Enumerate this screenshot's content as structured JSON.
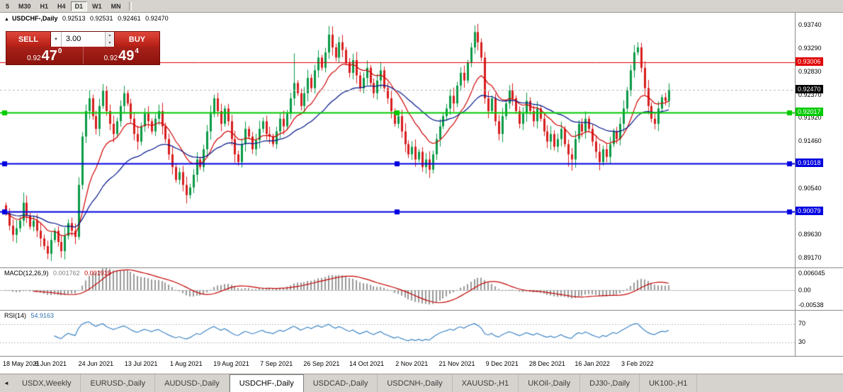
{
  "toolbar": {
    "timeframes": [
      "5",
      "M30",
      "H1",
      "H4",
      "D1",
      "W1",
      "MN"
    ],
    "active": "D1"
  },
  "chart": {
    "title": {
      "arrow_icon": "▲",
      "symbol": "USDCHF-,Daily",
      "open": "0.92513",
      "high": "0.92531",
      "low": "0.92461",
      "close": "0.92470"
    },
    "trade_panel": {
      "sell_label": "SELL",
      "buy_label": "BUY",
      "lot": "3.00",
      "lot_dropdown_icon": "▼",
      "spin_up_icon": "▲",
      "spin_down_icon": "▼",
      "bid_small": "0.92",
      "bid_big": "47",
      "bid_sup": "0",
      "ask_small": "0.92",
      "ask_big": "49",
      "ask_sup": "4"
    },
    "price_range": {
      "max": 0.9398,
      "min": 0.8898
    },
    "axis_labels": [
      "0.93740",
      "0.93290",
      "0.92830",
      "0.92370",
      "0.91920",
      "0.91460",
      "0.91010",
      "0.90540",
      "0.90070",
      "0.89630",
      "0.89170"
    ],
    "levels": [
      {
        "label": "0.93006",
        "price": 0.93006,
        "color": "#e00000",
        "width": 1,
        "handles": false
      },
      {
        "label": "0.92017",
        "price": 0.92017,
        "color": "#00ca00",
        "width": 2,
        "handles": true
      },
      {
        "label": "0.91018",
        "price": 0.91018,
        "color": "#0000e0",
        "width": 2,
        "handles": true
      },
      {
        "label": "0.90079",
        "price": 0.90079,
        "color": "#0000e0",
        "width": 2,
        "handles": true
      }
    ],
    "current_price": {
      "label": "0.92470",
      "price": 0.9247,
      "color": "#000000"
    },
    "dates": [
      "18 May 2021",
      "6 Jun 2021",
      "24 Jun 2021",
      "13 Jul 2021",
      "1 Aug 2021",
      "19 Aug 2021",
      "7 Sep 2021",
      "26 Sep 2021",
      "14 Oct 2021",
      "2 Nov 2021",
      "21 Nov 2021",
      "9 Dec 2021",
      "28 Dec 2021",
      "16 Jan 2022",
      "3 Feb 2022"
    ]
  },
  "chart_data": {
    "type": "candlestick",
    "symbol": "USDCHF-,Daily",
    "first_open": 0.902,
    "closes": [
      0.9005,
      0.898,
      0.8962,
      0.8975,
      0.899,
      0.9025,
      0.9,
      0.8978,
      0.899,
      0.897,
      0.8955,
      0.894,
      0.8925,
      0.8952,
      0.897,
      0.8948,
      0.893,
      0.896,
      0.8985,
      0.897,
      0.8958,
      0.906,
      0.9155,
      0.9205,
      0.923,
      0.9195,
      0.917,
      0.9215,
      0.9245,
      0.9205,
      0.918,
      0.916,
      0.9185,
      0.9215,
      0.924,
      0.922,
      0.919,
      0.916,
      0.9145,
      0.9175,
      0.92,
      0.9185,
      0.9165,
      0.919,
      0.9205,
      0.9175,
      0.915,
      0.912,
      0.9095,
      0.907,
      0.9085,
      0.906,
      0.904,
      0.9055,
      0.908,
      0.911,
      0.9095,
      0.913,
      0.9165,
      0.92,
      0.923,
      0.9205,
      0.918,
      0.921,
      0.9185,
      0.915,
      0.912,
      0.9105,
      0.914,
      0.917,
      0.9155,
      0.913,
      0.9148,
      0.917,
      0.9185,
      0.916,
      0.9155,
      0.914,
      0.9165,
      0.919,
      0.9175,
      0.92,
      0.923,
      0.926,
      0.924,
      0.9215,
      0.924,
      0.927,
      0.925,
      0.9285,
      0.931,
      0.929,
      0.932,
      0.9355,
      0.933,
      0.931,
      0.934,
      0.9325,
      0.93,
      0.928,
      0.9305,
      0.9275,
      0.925,
      0.927,
      0.929,
      0.926,
      0.924,
      0.9265,
      0.9285,
      0.925,
      0.923,
      0.9205,
      0.918,
      0.9195,
      0.9165,
      0.914,
      0.912,
      0.9135,
      0.911,
      0.9125,
      0.9095,
      0.911,
      0.909,
      0.912,
      0.915,
      0.9175,
      0.9195,
      0.921,
      0.9235,
      0.922,
      0.9255,
      0.928,
      0.9265,
      0.93,
      0.933,
      0.936,
      0.934,
      0.931,
      0.923,
      0.9205,
      0.923,
      0.9185,
      0.916,
      0.9195,
      0.922,
      0.9245,
      0.923,
      0.9205,
      0.918,
      0.92,
      0.9225,
      0.9205,
      0.9185,
      0.921,
      0.919,
      0.9165,
      0.9145,
      0.916,
      0.9135,
      0.915,
      0.917,
      0.914,
      0.912,
      0.911,
      0.915,
      0.918,
      0.9165,
      0.919,
      0.917,
      0.9145,
      0.9125,
      0.9105,
      0.913,
      0.9115,
      0.914,
      0.9165,
      0.915,
      0.918,
      0.921,
      0.9245,
      0.9285,
      0.932,
      0.933,
      0.929,
      0.925,
      0.9215,
      0.919,
      0.918,
      0.921,
      0.9232,
      0.9225,
      0.9247
    ],
    "wick_overrides": {
      "5": {
        "h": 0.9045
      },
      "12": {
        "l": 0.8917
      },
      "21": {
        "h": 0.9075
      },
      "28": {
        "h": 0.9258
      },
      "52": {
        "l": 0.903
      },
      "83": {
        "h": 0.9318
      },
      "93": {
        "h": 0.9372
      },
      "94": {
        "h": 0.9352
      },
      "120": {
        "l": 0.9088
      },
      "122": {
        "l": 0.9085
      },
      "135": {
        "h": 0.9373
      },
      "136": {
        "h": 0.9362
      },
      "162": {
        "l": 0.9096
      },
      "163": {
        "l": 0.9088
      },
      "171": {
        "l": 0.909
      },
      "181": {
        "h": 0.933
      },
      "182": {
        "h": 0.934
      }
    },
    "up_color": "#0a9a46",
    "down_color": "#d81e1e",
    "ma_fast": {
      "period": 13,
      "color": "#d00000"
    },
    "ma_slow": {
      "period": 34,
      "color": "#001489"
    }
  },
  "macd": {
    "label": "MACD(12,26,9)",
    "value_main": "0.001762",
    "value_signal": "0.001919",
    "axis_top": "0.006045",
    "axis_zero": "0.00",
    "axis_bottom": "-0.00538",
    "fast": 12,
    "slow": 26,
    "signal": 9,
    "histogram_color": "#9a9a9a",
    "signal_color": "#c40000"
  },
  "rsi": {
    "label": "RSI(14)",
    "value": "54.9163",
    "period": 14,
    "levels": [
      "70",
      "30"
    ],
    "color": "#3f85c6"
  },
  "tabs": {
    "scroll_left_icon": "◄",
    "items": [
      "USDX,Weekly",
      "EURUSD-,Daily",
      "AUDUSD-,Daily",
      "USDCHF-,Daily",
      "USDCAD-,Daily",
      "USDCNH-,Daily",
      "XAUUSD-,H1",
      "UKOil-,Daily",
      "DJ30-,Daily",
      "UK100-,H1"
    ],
    "active": "USDCHF-,Daily"
  }
}
